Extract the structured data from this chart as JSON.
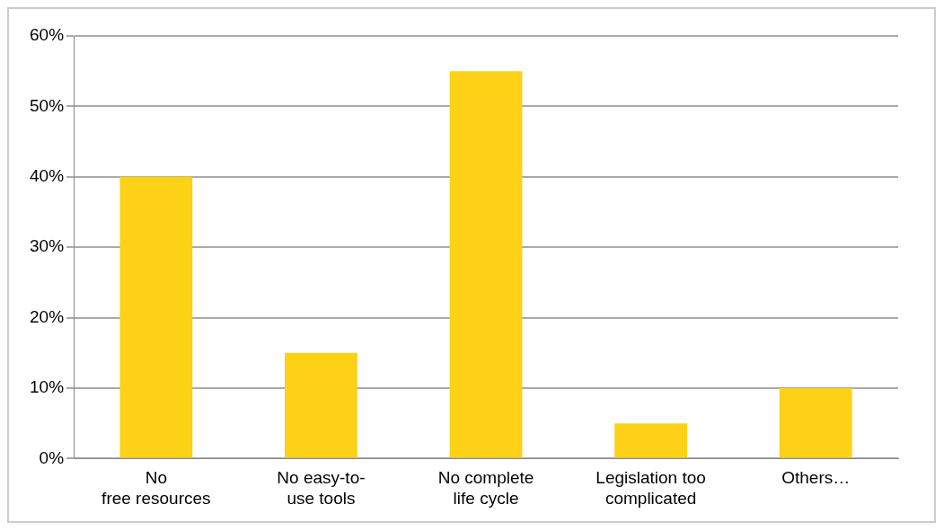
{
  "chart_data": {
    "type": "bar",
    "categories": [
      "No\nfree resources",
      "No easy-to-\nuse tools",
      "No complete\nlife cycle",
      "Legislation too\ncomplicated",
      "Others…"
    ],
    "values": [
      40,
      15,
      55,
      5,
      10
    ],
    "color": "#fcd116",
    "ylim": [
      0,
      60
    ],
    "yticks": [
      {
        "value": 0,
        "label": "0%"
      },
      {
        "value": 10,
        "label": "10%"
      },
      {
        "value": 20,
        "label": "20%"
      },
      {
        "value": 30,
        "label": "30%"
      },
      {
        "value": 40,
        "label": "40%"
      },
      {
        "value": 50,
        "label": "50%"
      },
      {
        "value": 60,
        "label": "60%"
      }
    ],
    "grid": "y",
    "legend": false
  }
}
